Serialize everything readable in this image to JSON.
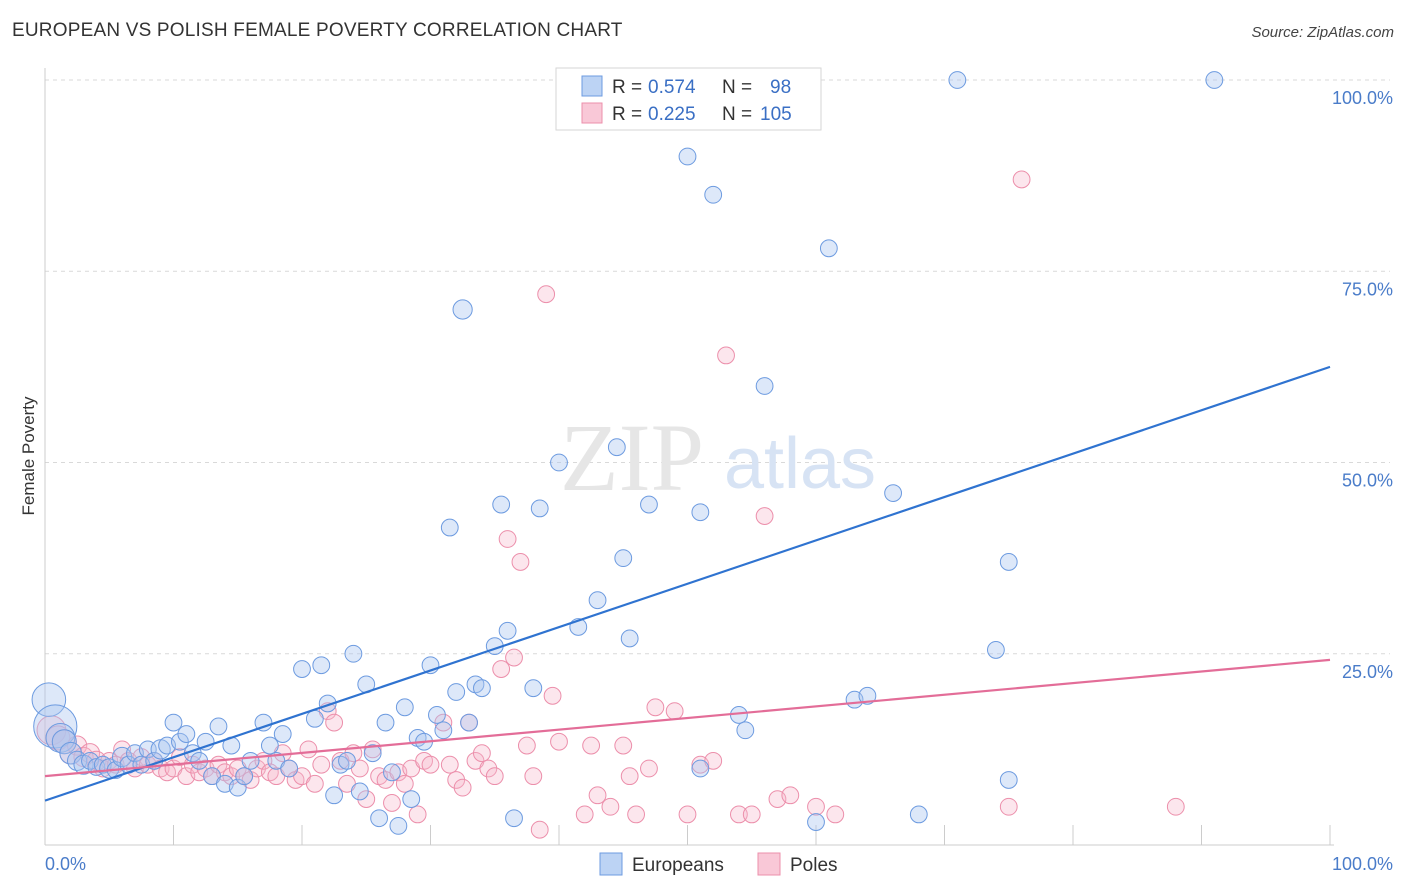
{
  "title": "EUROPEAN VS POLISH FEMALE POVERTY CORRELATION CHART",
  "source": "Source: ZipAtlas.com",
  "watermark": {
    "zip": "ZIP",
    "atlas": "atlas"
  },
  "colors": {
    "europeans_fill": "#a9c6f0",
    "europeans_stroke": "#6d9be0",
    "europeans_line": "#2f73d0",
    "poles_fill": "#f6b8cb",
    "poles_stroke": "#ec8fab",
    "poles_line": "#e36d98",
    "tick_label": "#4a7cc9",
    "grid": "#d9d9d9"
  },
  "legend": {
    "rows": [
      {
        "r_label": "R =",
        "r_value": "0.574",
        "n_label": "N =",
        "n_value": "98"
      },
      {
        "r_label": "R =",
        "r_value": "0.225",
        "n_label": "N =",
        "n_value": "105"
      }
    ]
  },
  "bottom_legend": [
    "Europeans",
    "Poles"
  ],
  "chart_data": {
    "type": "scatter",
    "title": "EUROPEAN VS POLISH FEMALE POVERTY CORRELATION CHART",
    "xlabel": "",
    "ylabel": "Female Poverty",
    "xlim": [
      0,
      100
    ],
    "ylim": [
      0,
      100
    ],
    "x_tick_labels": [
      "0.0%",
      "100.0%"
    ],
    "y_tick_labels": [
      "25.0%",
      "50.0%",
      "75.0%",
      "100.0%"
    ],
    "y_ticks": [
      25,
      50,
      75,
      100
    ],
    "grid": true,
    "legend_position": "top-center",
    "series": [
      {
        "name": "Europeans",
        "r": 0.574,
        "n": 98,
        "trend": {
          "x0": 0,
          "y0": 5.8,
          "x1": 100,
          "y1": 62.5
        },
        "points": [
          [
            0.3,
            19,
            14
          ],
          [
            0.8,
            15.5,
            18
          ],
          [
            1.2,
            14,
            12
          ],
          [
            1.5,
            13.5,
            10
          ],
          [
            2,
            12,
            9
          ],
          [
            2.5,
            11,
            8
          ],
          [
            3,
            10.5,
            8
          ],
          [
            3.5,
            11,
            7
          ],
          [
            4,
            10.2,
            7
          ],
          [
            4.5,
            10.5,
            7
          ],
          [
            5,
            10,
            8
          ],
          [
            5.5,
            9.8,
            7
          ],
          [
            6,
            11.5,
            8
          ],
          [
            6.5,
            10.5,
            7
          ],
          [
            7,
            12,
            7
          ],
          [
            7.5,
            10.5,
            7
          ],
          [
            8,
            12.5,
            7
          ],
          [
            8.5,
            11,
            7
          ],
          [
            9,
            12.5,
            8
          ],
          [
            9.5,
            13,
            7
          ],
          [
            10,
            16,
            7
          ],
          [
            10.5,
            13.5,
            7
          ],
          [
            11,
            14.5,
            7
          ],
          [
            11.5,
            12,
            7
          ],
          [
            12,
            11,
            7
          ],
          [
            12.5,
            13.5,
            7
          ],
          [
            13,
            9,
            7
          ],
          [
            13.5,
            15.5,
            7
          ],
          [
            14,
            8,
            7
          ],
          [
            14.5,
            13,
            7
          ],
          [
            15,
            7.5,
            7
          ],
          [
            15.5,
            9,
            7
          ],
          [
            16,
            11,
            7
          ],
          [
            17,
            16,
            7
          ],
          [
            17.5,
            13,
            7
          ],
          [
            18,
            11,
            7
          ],
          [
            18.5,
            14.5,
            7
          ],
          [
            19,
            10,
            7
          ],
          [
            20,
            23,
            7
          ],
          [
            21,
            16.5,
            7
          ],
          [
            21.5,
            23.5,
            7
          ],
          [
            22,
            18.5,
            7
          ],
          [
            22.5,
            6.5,
            7
          ],
          [
            23,
            10.5,
            7
          ],
          [
            23.5,
            11,
            7
          ],
          [
            24,
            25,
            7
          ],
          [
            24.5,
            7,
            7
          ],
          [
            25,
            21,
            7
          ],
          [
            25.5,
            12,
            7
          ],
          [
            26,
            3.5,
            7
          ],
          [
            26.5,
            16,
            7
          ],
          [
            27,
            9.5,
            7
          ],
          [
            27.5,
            2.5,
            7
          ],
          [
            28,
            18,
            7
          ],
          [
            28.5,
            6,
            7
          ],
          [
            29,
            14,
            7
          ],
          [
            29.5,
            13.5,
            7
          ],
          [
            30,
            23.5,
            7
          ],
          [
            30.5,
            17,
            7
          ],
          [
            31,
            15,
            7
          ],
          [
            31.5,
            41.5,
            7
          ],
          [
            32,
            20,
            7
          ],
          [
            32.5,
            70,
            8
          ],
          [
            33,
            16,
            7
          ],
          [
            33.5,
            21,
            7
          ],
          [
            34,
            20.5,
            7
          ],
          [
            35,
            26,
            7
          ],
          [
            35.5,
            44.5,
            7
          ],
          [
            36,
            28,
            7
          ],
          [
            36.5,
            3.5,
            7
          ],
          [
            38,
            20.5,
            7
          ],
          [
            38.5,
            44,
            7
          ],
          [
            40,
            50,
            7
          ],
          [
            41.5,
            28.5,
            7
          ],
          [
            43,
            32,
            7
          ],
          [
            44.5,
            52,
            7
          ],
          [
            45,
            37.5,
            7
          ],
          [
            45.5,
            27,
            7
          ],
          [
            47,
            44.5,
            7
          ],
          [
            50,
            90,
            7
          ],
          [
            51,
            10,
            7
          ],
          [
            51,
            43.5,
            7
          ],
          [
            52,
            85,
            7
          ],
          [
            54,
            17,
            7
          ],
          [
            54.5,
            15,
            7
          ],
          [
            56,
            60,
            7
          ],
          [
            60,
            3,
            7
          ],
          [
            61,
            78,
            7
          ],
          [
            63,
            19,
            7
          ],
          [
            64,
            19.5,
            7
          ],
          [
            66,
            46,
            7
          ],
          [
            68,
            4,
            7
          ],
          [
            71,
            100,
            7
          ],
          [
            74,
            25.5,
            7
          ],
          [
            75,
            37,
            7
          ],
          [
            75,
            8.5,
            7
          ],
          [
            91,
            100,
            7
          ]
        ]
      },
      {
        "name": "Poles",
        "r": 0.225,
        "n": 105,
        "trend": {
          "x0": 0,
          "y0": 9,
          "x1": 100,
          "y1": 24.2
        },
        "points": [
          [
            0.5,
            15,
            12
          ],
          [
            1,
            14,
            10
          ],
          [
            1.5,
            13.5,
            10
          ],
          [
            2,
            12,
            9
          ],
          [
            2.5,
            13,
            8
          ],
          [
            3,
            11.5,
            8
          ],
          [
            3.5,
            12,
            8
          ],
          [
            4,
            11,
            8
          ],
          [
            4.5,
            10,
            7
          ],
          [
            5,
            11,
            7
          ],
          [
            5.5,
            10.5,
            7
          ],
          [
            6,
            12.5,
            7
          ],
          [
            6.5,
            11,
            7
          ],
          [
            7,
            10,
            7
          ],
          [
            7.5,
            11.5,
            7
          ],
          [
            8,
            10.5,
            7
          ],
          [
            8.5,
            11,
            7
          ],
          [
            9,
            10,
            7
          ],
          [
            9.5,
            9.5,
            7
          ],
          [
            10,
            10,
            7
          ],
          [
            10.5,
            11.5,
            7
          ],
          [
            11,
            9,
            7
          ],
          [
            11.5,
            10.5,
            7
          ],
          [
            12,
            9.5,
            7
          ],
          [
            12.5,
            10,
            7
          ],
          [
            13,
            9,
            7
          ],
          [
            13.5,
            10.5,
            7
          ],
          [
            14,
            9.5,
            7
          ],
          [
            14.5,
            9,
            7
          ],
          [
            15,
            10,
            7
          ],
          [
            15.5,
            9,
            7
          ],
          [
            16,
            8.5,
            7
          ],
          [
            16.5,
            10,
            7
          ],
          [
            17,
            11,
            7
          ],
          [
            17.5,
            9.5,
            7
          ],
          [
            18,
            9,
            7
          ],
          [
            18.5,
            12,
            7
          ],
          [
            19,
            10,
            7
          ],
          [
            19.5,
            8.5,
            7
          ],
          [
            20,
            9,
            7
          ],
          [
            20.5,
            12.5,
            7
          ],
          [
            21,
            8,
            7
          ],
          [
            21.5,
            10.5,
            7
          ],
          [
            22,
            17.5,
            7
          ],
          [
            22.5,
            16,
            7
          ],
          [
            23,
            11,
            7
          ],
          [
            23.5,
            8,
            7
          ],
          [
            24,
            12,
            7
          ],
          [
            24.5,
            10,
            7
          ],
          [
            25,
            6,
            7
          ],
          [
            25.5,
            12.5,
            7
          ],
          [
            26,
            9,
            7
          ],
          [
            26.5,
            8.5,
            7
          ],
          [
            27,
            5.5,
            7
          ],
          [
            27.5,
            9.5,
            7
          ],
          [
            28,
            8,
            7
          ],
          [
            28.5,
            10,
            7
          ],
          [
            29,
            4,
            7
          ],
          [
            29.5,
            11,
            7
          ],
          [
            30,
            10.5,
            7
          ],
          [
            31,
            16,
            7
          ],
          [
            31.5,
            10.5,
            7
          ],
          [
            32,
            8.5,
            7
          ],
          [
            32.5,
            7.5,
            7
          ],
          [
            33,
            16,
            7
          ],
          [
            33.5,
            11,
            7
          ],
          [
            34,
            12,
            7
          ],
          [
            34.5,
            10,
            7
          ],
          [
            35,
            9,
            7
          ],
          [
            35.5,
            23,
            7
          ],
          [
            36,
            40,
            7
          ],
          [
            36.5,
            24.5,
            7
          ],
          [
            37,
            37,
            7
          ],
          [
            37.5,
            13,
            7
          ],
          [
            38,
            9,
            7
          ],
          [
            38.5,
            2,
            7
          ],
          [
            39,
            72,
            7
          ],
          [
            39.5,
            19.5,
            7
          ],
          [
            40,
            13.5,
            7
          ],
          [
            42,
            4,
            7
          ],
          [
            42.5,
            13,
            7
          ],
          [
            43,
            6.5,
            7
          ],
          [
            44,
            5,
            7
          ],
          [
            45,
            13,
            7
          ],
          [
            45.5,
            9,
            7
          ],
          [
            46,
            4,
            7
          ],
          [
            47,
            10,
            7
          ],
          [
            47.5,
            18,
            7
          ],
          [
            49,
            17.5,
            7
          ],
          [
            50,
            4,
            7
          ],
          [
            51,
            10.5,
            7
          ],
          [
            52,
            11,
            7
          ],
          [
            53,
            64,
            7
          ],
          [
            54,
            4,
            7
          ],
          [
            55,
            4,
            7
          ],
          [
            56,
            43,
            7
          ],
          [
            57,
            6,
            7
          ],
          [
            58,
            6.5,
            7
          ],
          [
            60,
            5,
            7
          ],
          [
            61.5,
            4,
            7
          ],
          [
            75,
            5,
            7
          ],
          [
            76,
            87,
            7
          ],
          [
            88,
            5,
            7
          ]
        ]
      }
    ]
  }
}
